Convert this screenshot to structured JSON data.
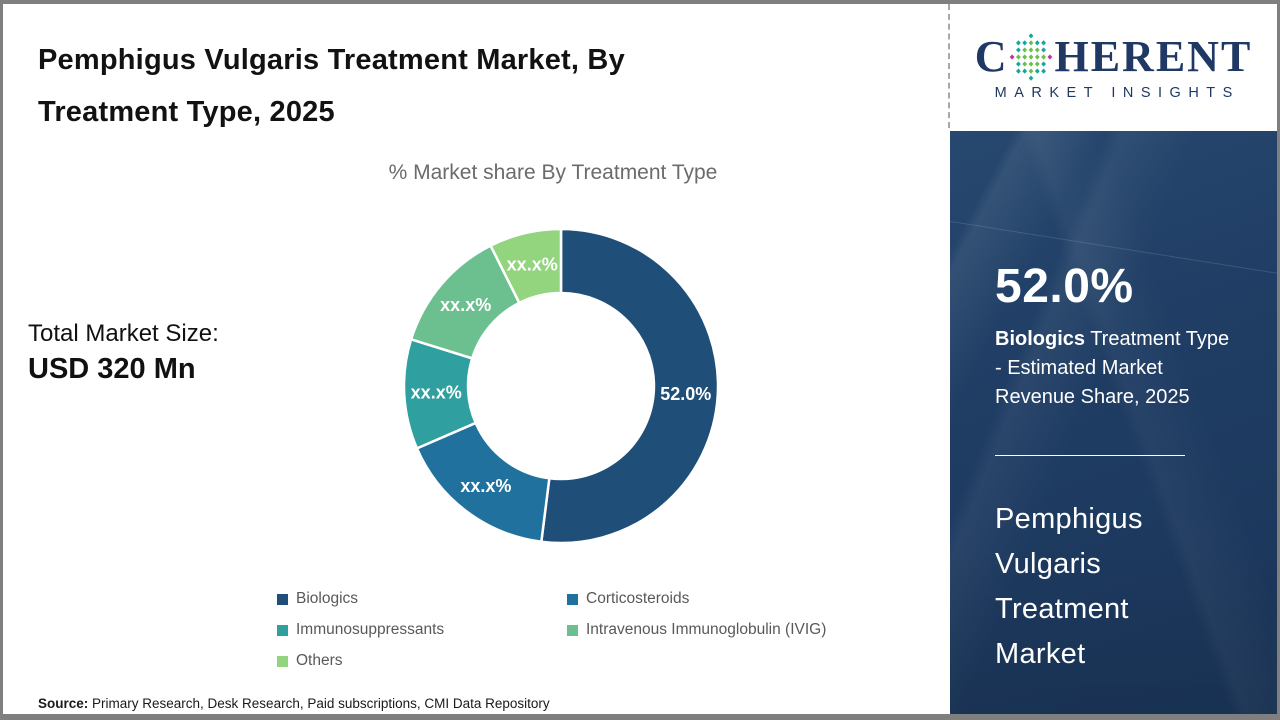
{
  "header": {
    "title_lines": [
      "Pemphigus Vulgaris Treatment Market, By",
      "Treatment Type, 2025"
    ]
  },
  "logo": {
    "letter_c": "C",
    "word_rest": "HERENT",
    "subtitle": "MARKET INSIGHTS",
    "navy": "#1f3864",
    "dot_teal": "#14a79d",
    "dot_green": "#6abf4b",
    "dot_magenta": "#bb3794"
  },
  "left_panel": {
    "total_label": "Total Market Size:",
    "total_value": "USD 320 Mn"
  },
  "chart_data": {
    "type": "pie",
    "subtype": "donut",
    "title": "% Market share By Treatment Type",
    "categories": [
      "Biologics",
      "Corticosteroids",
      "Immunosuppressants",
      "Intravenous Immunoglobulin (IVIG)",
      "Others"
    ],
    "values": [
      52.0,
      16.5,
      11.3,
      12.8,
      7.4
    ],
    "labels": [
      "52.0%",
      "xx.x%",
      "xx.x%",
      "xx.x%",
      "xx.x%"
    ],
    "colors": [
      "#1f4e78",
      "#20719e",
      "#2f9fa0",
      "#6cbf8e",
      "#93d57e"
    ],
    "start_angle_deg": 0,
    "direction": "clockwise",
    "inner_radius_ratio": 0.59,
    "legend_position": "bottom",
    "label_color": "#ffffff"
  },
  "sidebar": {
    "background": "#1f3c63",
    "stat_value": "52.0%",
    "stat_desc": {
      "bold": "Biologics",
      "line1_rest": "  Treatment Type",
      "line2": "- Estimated Market",
      "line3": "Revenue Share, 2025"
    },
    "market_title_lines": [
      "Pemphigus",
      "Vulgaris",
      "Treatment",
      "Market"
    ]
  },
  "footer": {
    "source_label": "Source:",
    "source_text": " Primary Research, Desk Research, Paid subscriptions, CMI Data Repository"
  }
}
